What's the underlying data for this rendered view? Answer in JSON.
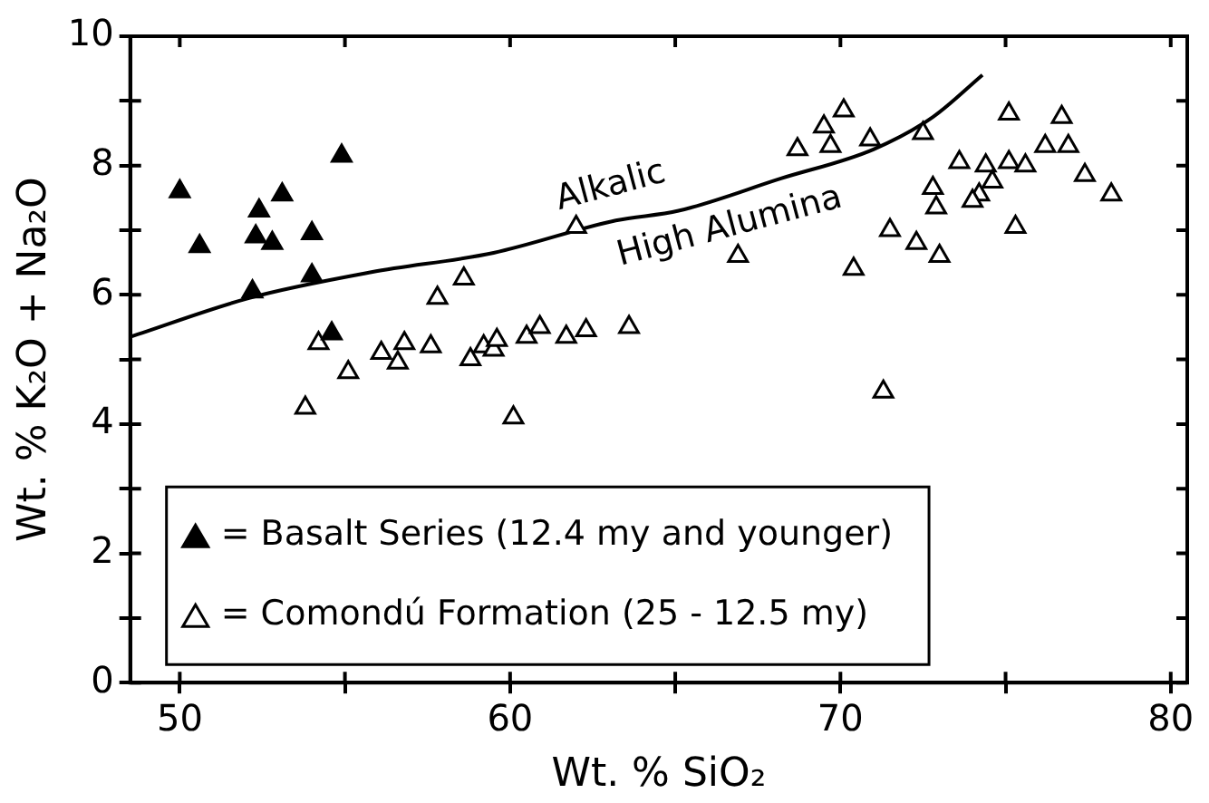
{
  "chart_data": {
    "type": "scatter",
    "xlabel": "Wt. % SiO₂",
    "ylabel": "Wt. % K₂O + Na₂O",
    "xlim": [
      48.5,
      80.5
    ],
    "ylim": [
      0,
      10
    ],
    "xticks": [
      50,
      {
        "value": 55,
        "label": null
      },
      60,
      {
        "value": 65,
        "label": null
      },
      70,
      {
        "value": 75,
        "label": null
      },
      80
    ],
    "yticks": [
      0,
      {
        "value": 1,
        "label": null
      },
      2,
      {
        "value": 3,
        "label": null
      },
      4,
      {
        "value": 5,
        "label": null
      },
      6,
      {
        "value": 7,
        "label": null
      },
      8,
      {
        "value": 9,
        "label": null
      },
      10
    ],
    "grid": false,
    "legend": "bottom left",
    "marker": "triangle",
    "annotations": [
      "Alkalic",
      "High Alumina"
    ],
    "series": [
      {
        "name": "= Basalt Series (12.4 my and younger)",
        "color": "#000000",
        "x": [
          50.0,
          50.6,
          52.4,
          53.1,
          52.3,
          52.8,
          54.0,
          54.0,
          52.2,
          54.9,
          54.6
        ],
        "values": [
          7.6,
          6.75,
          7.3,
          7.55,
          6.9,
          6.8,
          6.95,
          6.3,
          6.05,
          8.15,
          5.4
        ]
      },
      {
        "name": "= Comondú Formation (25 - 12.5 my)",
        "color": "#000000",
        "x": [
          62.0,
          57.8,
          58.6,
          54.2,
          55.1,
          56.1,
          56.6,
          56.8,
          57.6,
          58.8,
          59.2,
          59.5,
          59.6,
          60.5,
          60.9,
          61.7,
          62.3,
          63.6,
          53.8,
          60.1,
          66.9,
          70.1,
          69.5,
          68.7,
          69.7,
          70.9,
          72.5,
          70.4,
          71.5,
          72.3,
          73.0,
          71.3,
          72.8,
          72.9,
          73.6,
          74.4,
          74.6,
          74.2,
          74.0,
          75.1,
          75.6,
          75.1,
          75.3,
          76.2,
          76.9,
          76.7,
          77.4,
          78.2
        ],
        "values": [
          7.05,
          5.95,
          6.25,
          5.25,
          4.8,
          5.1,
          4.95,
          5.25,
          5.2,
          5.0,
          5.2,
          5.15,
          5.3,
          5.35,
          5.5,
          5.35,
          5.45,
          5.5,
          4.25,
          4.1,
          6.6,
          8.85,
          8.6,
          8.25,
          8.3,
          8.4,
          8.5,
          6.4,
          7.0,
          6.8,
          6.6,
          4.5,
          7.65,
          7.35,
          8.05,
          8.0,
          7.75,
          7.55,
          7.45,
          8.05,
          8.0,
          8.8,
          7.05,
          8.3,
          8.3,
          8.75,
          7.85,
          7.55
        ]
      },
      {
        "type": "line",
        "color": "#000000",
        "marker": "none",
        "x": [
          48.5,
          52.1,
          55.8,
          59.5,
          63.2,
          65.1,
          68.2,
          71.0,
          72.8,
          74.3
        ],
        "values": [
          5.35,
          5.95,
          6.35,
          6.65,
          7.15,
          7.3,
          7.8,
          8.25,
          8.75,
          9.4
        ]
      }
    ]
  }
}
